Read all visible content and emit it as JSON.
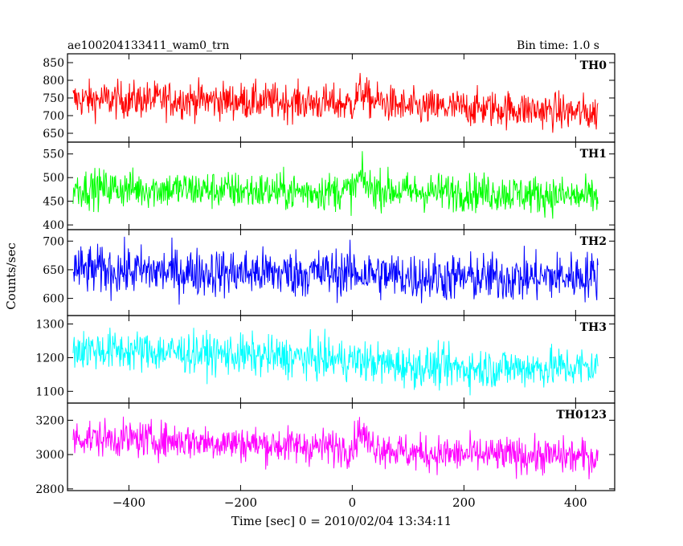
{
  "header": {
    "title": "ae100204133411_wam0_trn",
    "bin_time": "Bin time: 1.0 s"
  },
  "chart_data": {
    "type": "line",
    "title": "ae100204133411_wam0_trn",
    "subtitle": "Bin time: 1.0 s",
    "xlabel": "Time [sec] 0 = 2010/02/04 13:34:11",
    "ylabel": "Counts/sec",
    "xlim": [
      -510,
      470
    ],
    "x_range": [
      -500,
      440
    ],
    "x_step": 1.0,
    "xticks": [
      -400,
      -200,
      0,
      200,
      400
    ],
    "xtick_labels": [
      "−400",
      "−200",
      "0",
      "200",
      "400"
    ],
    "grid": false,
    "panels": [
      {
        "name": "TH0",
        "color": "#ff0000",
        "ylim": [
          625,
          875
        ],
        "yticks": [
          650,
          700,
          750,
          800,
          850
        ],
        "ytick_labels": [
          "650",
          "700",
          "750",
          "800",
          "850"
        ],
        "profile_x": [
          -500,
          -300,
          -100,
          0,
          15,
          30,
          100,
          200,
          300,
          440
        ],
        "profile_y": [
          745,
          745,
          738,
          732,
          772,
          745,
          722,
          722,
          718,
          705
        ],
        "spread": 52
      },
      {
        "name": "TH1",
        "color": "#00ff00",
        "ylim": [
          390,
          575
        ],
        "yticks": [
          400,
          450,
          500,
          550
        ],
        "ytick_labels": [
          "400",
          "450",
          "500",
          "550"
        ],
        "profile_x": [
          -500,
          -300,
          -100,
          0,
          15,
          30,
          100,
          200,
          300,
          440
        ],
        "profile_y": [
          478,
          475,
          470,
          472,
          502,
          478,
          470,
          470,
          466,
          458
        ],
        "spread": 40
      },
      {
        "name": "TH2",
        "color": "#0000ff",
        "ylim": [
          570,
          720
        ],
        "yticks": [
          600,
          650,
          700
        ],
        "ytick_labels": [
          "600",
          "650",
          "700"
        ],
        "profile_x": [
          -500,
          -300,
          -100,
          0,
          100,
          200,
          300,
          440
        ],
        "profile_y": [
          650,
          646,
          644,
          645,
          638,
          636,
          636,
          640
        ],
        "spread": 42
      },
      {
        "name": "TH3",
        "color": "#00ffff",
        "ylim": [
          1065,
          1325
        ],
        "yticks": [
          1100,
          1200,
          1300
        ],
        "ytick_labels": [
          "1100",
          "1200",
          "1300"
        ],
        "profile_x": [
          -500,
          -300,
          -100,
          0,
          100,
          200,
          300,
          440
        ],
        "profile_y": [
          1225,
          1215,
          1200,
          1192,
          1175,
          1168,
          1170,
          1172
        ],
        "spread": 60
      },
      {
        "name": "TH0123",
        "color": "#ff00ff",
        "ylim": [
          2790,
          3300
        ],
        "yticks": [
          2800,
          3000,
          3200
        ],
        "ytick_labels": [
          "2800",
          "3000",
          "3200"
        ],
        "profile_x": [
          -500,
          -300,
          -100,
          0,
          15,
          30,
          100,
          200,
          300,
          440
        ],
        "profile_y": [
          3100,
          3080,
          3050,
          3040,
          3150,
          3060,
          3010,
          3000,
          2995,
          2985
        ],
        "spread": 105
      }
    ]
  }
}
